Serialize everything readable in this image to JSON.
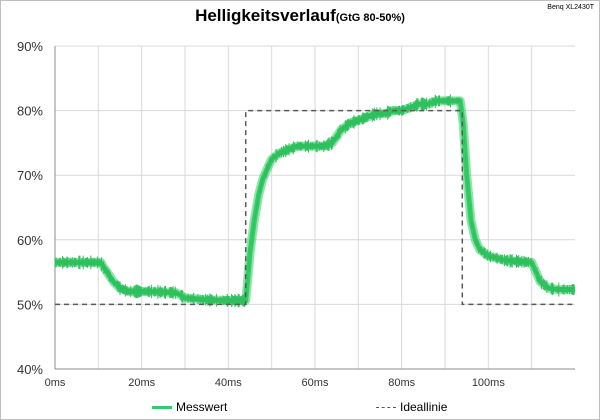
{
  "header": {
    "title": "Helligkeitsverlauf",
    "subtitle": "(GtG 80-50%)",
    "corner_label": "Benq XL2430T"
  },
  "legend": {
    "measured": "Messwert",
    "ideal": "Ideallinie"
  },
  "colors": {
    "measured": "#33cc66",
    "ideal": "#595959",
    "grid": "#d9d9d9"
  },
  "chart_data": {
    "type": "line",
    "title": "Helligkeitsverlauf",
    "subtitle": "(GtG 80-50%)",
    "xlabel": "",
    "ylabel": "",
    "xlim": [
      0,
      120
    ],
    "ylim": [
      40,
      90
    ],
    "grid": true,
    "legend_position": "bottom",
    "x_ticks": [
      "0ms",
      "20ms",
      "40ms",
      "60ms",
      "80ms",
      "100ms"
    ],
    "x_tick_values": [
      0,
      20,
      40,
      60,
      80,
      100
    ],
    "y_ticks": [
      "40%",
      "50%",
      "60%",
      "70%",
      "80%",
      "90%"
    ],
    "y_tick_values": [
      40,
      50,
      60,
      70,
      80,
      90
    ],
    "series": [
      {
        "name": "Messwert",
        "style": "solid",
        "x": [
          0,
          10.5,
          12,
          13.5,
          15,
          17,
          22,
          28,
          30,
          35,
          40,
          44,
          44.5,
          45,
          46,
          47,
          48,
          49,
          50,
          52,
          54,
          56,
          58,
          60,
          62,
          64,
          65,
          66,
          68,
          70,
          72,
          74,
          76,
          78,
          80,
          82,
          84,
          86,
          88,
          90,
          93.5,
          94.2,
          95,
          96,
          97,
          98,
          100,
          104,
          110,
          111,
          112,
          114,
          116,
          120
        ],
        "y": [
          56.5,
          56.5,
          55,
          53.5,
          52.5,
          52,
          52,
          51.8,
          51,
          50.7,
          50.6,
          50.6,
          54,
          58,
          63,
          67,
          69.5,
          71,
          72.5,
          73.5,
          74,
          74.5,
          74.5,
          74.5,
          74.5,
          75,
          76,
          77,
          78,
          78.5,
          79,
          79.5,
          79.5,
          80,
          80,
          80.5,
          81,
          81,
          81.5,
          81.5,
          81.5,
          78,
          70,
          63,
          60,
          58.5,
          57.5,
          56.8,
          56.5,
          55,
          53.5,
          52.5,
          52.3,
          52.3
        ]
      },
      {
        "name": "Ideallinie",
        "style": "dashed",
        "x": [
          0,
          44,
          44,
          94,
          94,
          120
        ],
        "y": [
          50,
          50,
          80,
          80,
          50,
          50
        ]
      }
    ]
  }
}
